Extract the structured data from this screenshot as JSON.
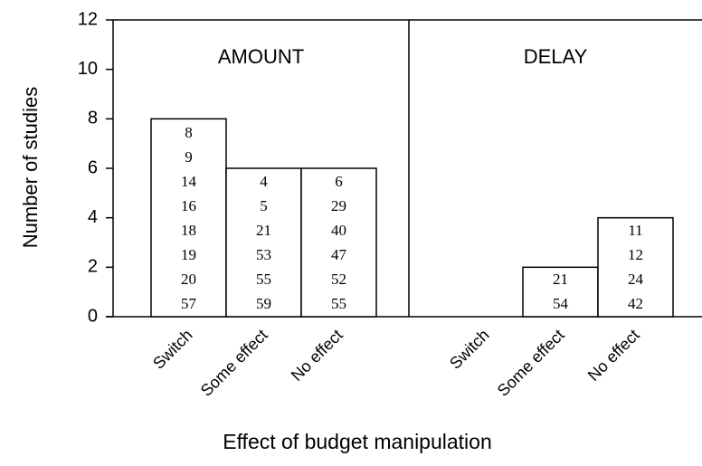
{
  "chart_data": [
    {
      "type": "bar",
      "title": "AMOUNT",
      "ylabel": "Number of studies",
      "xlabel": "Effect of budget manipulation",
      "categories": [
        "Switch",
        "Some effect",
        "No effect"
      ],
      "values": [
        8,
        6,
        6
      ],
      "bar_labels": [
        [
          8,
          9,
          14,
          16,
          18,
          19,
          20,
          57
        ],
        [
          4,
          5,
          21,
          53,
          55,
          59
        ],
        [
          6,
          29,
          40,
          47,
          52,
          55
        ]
      ],
      "color": "#ffffff",
      "ylim": [
        0,
        12
      ],
      "yticks": [
        0,
        2,
        4,
        6,
        8,
        10,
        12
      ]
    },
    {
      "type": "bar",
      "title": "DELAY",
      "categories": [
        "Switch",
        "Some effect",
        "No effect"
      ],
      "values": [
        0,
        2,
        4
      ],
      "bar_labels": [
        [],
        [
          21,
          54
        ],
        [
          11,
          12,
          24,
          42
        ]
      ],
      "color": "#ffffff",
      "ylim": [
        0,
        12
      ]
    }
  ]
}
